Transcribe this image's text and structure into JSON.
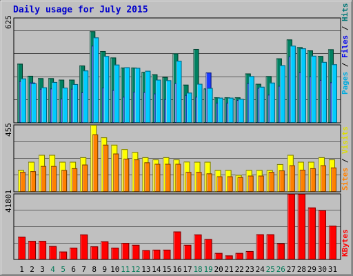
{
  "chart_data": [
    {
      "type": "bar",
      "title": "Daily usage for July 2015",
      "ymax_label": "625",
      "legend": [
        {
          "name": "Pages",
          "color": "#00ccff"
        },
        {
          "name": "Files",
          "color": "#0000ff"
        },
        {
          "name": "Hits",
          "color": "#008080"
        }
      ],
      "categories": [
        "1",
        "2",
        "3",
        "4",
        "5",
        "6",
        "7",
        "8",
        "9",
        "10",
        "11",
        "12",
        "13",
        "14",
        "15",
        "16",
        "17",
        "18",
        "19",
        "20",
        "21",
        "22",
        "23",
        "24",
        "25",
        "26",
        "27",
        "28",
        "29",
        "30",
        "31"
      ],
      "weekend_days": [
        "4",
        "5",
        "11",
        "12",
        "18",
        "19",
        "25",
        "26"
      ],
      "ylim": [
        0,
        625
      ],
      "series": [
        {
          "name": "Hits",
          "color": "#008060",
          "values": [
            400,
            318,
            302,
            302,
            292,
            292,
            388,
            620,
            486,
            442,
            374,
            374,
            344,
            328,
            310,
            470,
            258,
            500,
            232,
            172,
            172,
            172,
            334,
            264,
            316,
            436,
            564,
            512,
            490,
            452,
            498
          ]
        },
        {
          "name": "Files",
          "color": "#1a3aff",
          "values": [
            282,
            272,
            230,
            232,
            164,
            230,
            206,
            522,
            238,
            222,
            176,
            210,
            208,
            198,
            160,
            268,
            188,
            176,
            340,
            136,
            136,
            154,
            268,
            236,
            190,
            250,
            450,
            342,
            314,
            290,
            274
          ]
        },
        {
          "name": "Pages",
          "color": "#00ccff",
          "values": [
            300,
            268,
            240,
            276,
            238,
            262,
            354,
            578,
            452,
            394,
            376,
            372,
            352,
            292,
            288,
            420,
            204,
            264,
            236,
            170,
            170,
            162,
            316,
            244,
            272,
            390,
            522,
            504,
            454,
            412,
            396
          ]
        }
      ]
    },
    {
      "type": "bar",
      "ymax_label": "455",
      "legend": [
        {
          "name": "Sites",
          "color": "#ff8000"
        },
        {
          "name": "Visits",
          "color": "#ffff00"
        }
      ],
      "categories": [
        "1",
        "2",
        "3",
        "4",
        "5",
        "6",
        "7",
        "8",
        "9",
        "10",
        "11",
        "12",
        "13",
        "14",
        "15",
        "16",
        "17",
        "18",
        "19",
        "20",
        "21",
        "22",
        "23",
        "24",
        "25",
        "26",
        "27",
        "28",
        "29",
        "30",
        "31"
      ],
      "ylim": [
        0,
        455
      ],
      "series": [
        {
          "name": "Visits",
          "color": "#ffff00",
          "values": [
            148,
            204,
            251,
            251,
            204,
            204,
            235,
            455,
            370,
            320,
            290,
            270,
            235,
            220,
            235,
            220,
            205,
            204,
            204,
            148,
            148,
            115,
            148,
            148,
            148,
            188,
            251,
            204,
            204,
            235,
            220
          ]
        },
        {
          "name": "Sites",
          "color": "#ff8000",
          "values": [
            135,
            140,
            175,
            175,
            148,
            160,
            185,
            390,
            320,
            260,
            225,
            220,
            200,
            190,
            190,
            190,
            135,
            135,
            125,
            105,
            105,
            100,
            110,
            110,
            135,
            145,
            180,
            150,
            160,
            180,
            165
          ]
        }
      ]
    },
    {
      "type": "bar",
      "ymax_label": "41801",
      "legend": [
        {
          "name": "KBytes",
          "color": "#ff0000"
        }
      ],
      "categories": [
        "1",
        "2",
        "3",
        "4",
        "5",
        "6",
        "7",
        "8",
        "9",
        "10",
        "11",
        "12",
        "13",
        "14",
        "15",
        "16",
        "17",
        "18",
        "19",
        "20",
        "21",
        "22",
        "23",
        "24",
        "25",
        "26",
        "27",
        "28",
        "29",
        "30",
        "31"
      ],
      "ylim": [
        0,
        41801
      ],
      "series": [
        {
          "name": "KBytes",
          "color": "#ff0000",
          "values": [
            14500,
            11800,
            11800,
            8500,
            5000,
            7500,
            15900,
            8300,
            11500,
            7500,
            10500,
            9300,
            5900,
            6200,
            6200,
            17800,
            9300,
            15900,
            13000,
            4100,
            2500,
            4100,
            5300,
            16000,
            16000,
            10200,
            41800,
            41800,
            33100,
            31300,
            21500
          ]
        }
      ]
    }
  ]
}
